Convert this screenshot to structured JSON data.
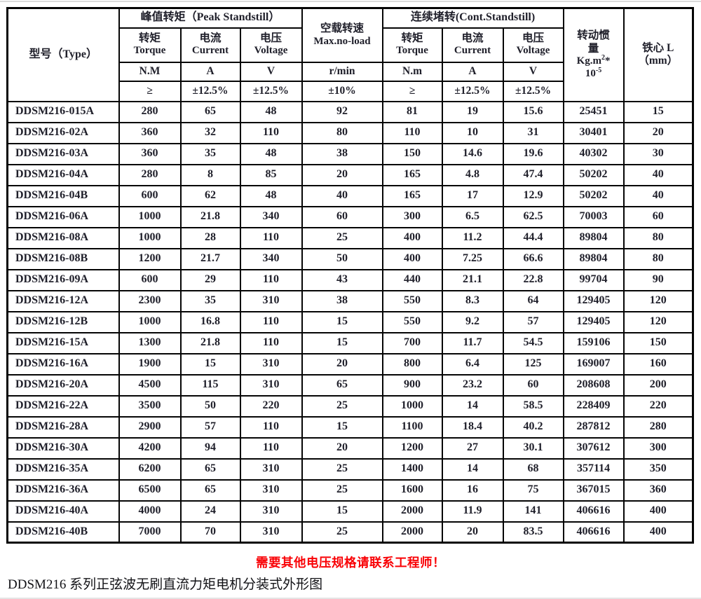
{
  "colors": {
    "notice_red": "#f90105",
    "table_border": "#050505",
    "text": "#20202b"
  },
  "table": {
    "header": {
      "type": "型号（Type）",
      "peak_group": "峰值转矩（Peak Standstill）",
      "noload_zh": "空载转速",
      "noload_en": "Max.no-load",
      "cont_group": "连续堵转(Cont.Standstill)",
      "torque_zh": "转矩",
      "torque_en": "Torque",
      "current_zh": "电流",
      "current_en": "Current",
      "voltage_zh": "电压",
      "voltage_en": "Voltage",
      "inertia_zh1": "转动惯",
      "inertia_zh2": "量",
      "inertia_unit_base": "Kg.m",
      "inertia_unit_exp": "2",
      "inertia_unit_mult": "*",
      "inertia_pow_base": "10",
      "inertia_pow_exp": "-5",
      "core_zh": "铁心 L",
      "core_unit": "（mm）",
      "units": {
        "peak_torque": "N.M",
        "peak_current": "A",
        "peak_voltage": "V",
        "noload": "r/min",
        "cont_torque": "N.m",
        "cont_current": "A",
        "cont_voltage": "V"
      },
      "tolerances": {
        "peak_torque": "≥",
        "peak_current": "±12.5%",
        "peak_voltage": "±12.5%",
        "noload": "±10%",
        "cont_torque": "≥",
        "cont_current": "±12.5%",
        "cont_voltage": "±12.5%"
      }
    },
    "rows": [
      [
        "DDSM216-015A",
        "280",
        "65",
        "48",
        "92",
        "81",
        "19",
        "15.6",
        "25451",
        "15"
      ],
      [
        "DDSM216-02A",
        "360",
        "32",
        "110",
        "80",
        "110",
        "10",
        "31",
        "30401",
        "20"
      ],
      [
        "DDSM216-03A",
        "360",
        "35",
        "48",
        "38",
        "150",
        "14.6",
        "19.6",
        "40302",
        "30"
      ],
      [
        "DDSM216-04A",
        "280",
        "8",
        "85",
        "20",
        "165",
        "4.8",
        "47.4",
        "50202",
        "40"
      ],
      [
        "DDSM216-04B",
        "600",
        "62",
        "48",
        "40",
        "165",
        "17",
        "12.9",
        "50202",
        "40"
      ],
      [
        "DDSM216-06A",
        "1000",
        "21.8",
        "340",
        "60",
        "300",
        "6.5",
        "62.5",
        "70003",
        "60"
      ],
      [
        "DDSM216-08A",
        "1000",
        "28",
        "110",
        "25",
        "400",
        "11.2",
        "44.4",
        "89804",
        "80"
      ],
      [
        "DDSM216-08B",
        "1200",
        "21.7",
        "340",
        "50",
        "400",
        "7.25",
        "66.6",
        "89804",
        "80"
      ],
      [
        "DDSM216-09A",
        "600",
        "29",
        "110",
        "43",
        "440",
        "21.1",
        "22.8",
        "99704",
        "90"
      ],
      [
        "DDSM216-12A",
        "2300",
        "35",
        "310",
        "38",
        "550",
        "8.3",
        "64",
        "129405",
        "120"
      ],
      [
        "DDSM216-12B",
        "1000",
        "16.8",
        "110",
        "15",
        "550",
        "9.2",
        "57",
        "129405",
        "120"
      ],
      [
        "DDSM216-15A",
        "1300",
        "21.8",
        "110",
        "15",
        "700",
        "11.7",
        "54.5",
        "159106",
        "150"
      ],
      [
        "DDSM216-16A",
        "1900",
        "15",
        "310",
        "20",
        "800",
        "6.4",
        "125",
        "169007",
        "160"
      ],
      [
        "DDSM216-20A",
        "4500",
        "115",
        "310",
        "65",
        "900",
        "23.2",
        "60",
        "208608",
        "200"
      ],
      [
        "DDSM216-22A",
        "3500",
        "50",
        "220",
        "25",
        "1000",
        "14",
        "58.5",
        "228409",
        "220"
      ],
      [
        "DDSM216-28A",
        "2900",
        "57",
        "110",
        "15",
        "1100",
        "18.4",
        "40.2",
        "287812",
        "280"
      ],
      [
        "DDSM216-30A",
        "4200",
        "94",
        "110",
        "20",
        "1200",
        "27",
        "30.1",
        "307612",
        "300"
      ],
      [
        "DDSM216-35A",
        "6200",
        "65",
        "310",
        "25",
        "1400",
        "14",
        "68",
        "357114",
        "350"
      ],
      [
        "DDSM216-36A",
        "6500",
        "65",
        "310",
        "25",
        "1600",
        "16",
        "75",
        "367015",
        "360"
      ],
      [
        "DDSM216-40A",
        "4000",
        "24",
        "310",
        "15",
        "2000",
        "11.9",
        "141",
        "406616",
        "400"
      ],
      [
        "DDSM216-40B",
        "7000",
        "70",
        "310",
        "25",
        "2000",
        "20",
        "83.5",
        "406616",
        "400"
      ]
    ]
  },
  "footer": {
    "notice": "需要其他电压规格请联系工程师！",
    "caption": "DDSM216 系列正弦波无刷直流力矩电机分装式外形图"
  }
}
